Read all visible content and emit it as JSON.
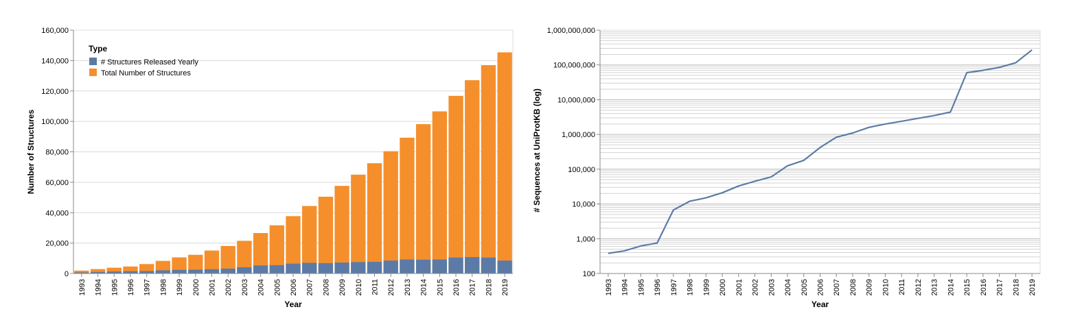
{
  "chart_data": [
    {
      "type": "bar",
      "stacked": true,
      "xlabel": "Year",
      "ylabel": "Number of Structures",
      "ylim": [
        0,
        160000
      ],
      "yticks": [
        "0",
        "20,000",
        "40,000",
        "60,000",
        "80,000",
        "100,000",
        "120,000",
        "140,000",
        "160,000"
      ],
      "grid": true,
      "legend": {
        "title": "Type",
        "placement": "top-left"
      },
      "categories": [
        "1993",
        "1994",
        "1995",
        "1996",
        "1997",
        "1998",
        "1999",
        "2000",
        "2001",
        "2002",
        "2003",
        "2004",
        "2005",
        "2006",
        "2007",
        "2008",
        "2009",
        "2010",
        "2011",
        "2012",
        "2013",
        "2014",
        "2015",
        "2016",
        "2017",
        "2018",
        "2019"
      ],
      "series": [
        {
          "name": "# Structures Released Yearly",
          "color": "#5b7ba6",
          "values": [
            700,
            1000,
            1300,
            1500,
            1600,
            2100,
            2400,
            2500,
            2800,
            3200,
            4100,
            5300,
            5500,
            6500,
            7000,
            6800,
            7200,
            7500,
            7700,
            8500,
            9200,
            9100,
            9200,
            10500,
            10800,
            10500,
            8500
          ]
        },
        {
          "name": "Total Number of Structures",
          "color": "#f58f2c",
          "values": [
            1900,
            2900,
            3800,
            4600,
            6200,
            8300,
            10600,
            12300,
            15100,
            18100,
            21500,
            26600,
            31700,
            37700,
            44400,
            50500,
            57600,
            65000,
            72500,
            80400,
            89300,
            98200,
            106600,
            116800,
            127100,
            137000,
            145400
          ]
        }
      ]
    },
    {
      "type": "line",
      "scale": "log",
      "xlabel": "Year",
      "ylabel": "# Sequences at UniProtKB (log)",
      "ylim": [
        100,
        1000000000
      ],
      "yticks": [
        "100",
        "1,000",
        "10,000",
        "100,000",
        "1,000,000",
        "10,000,000",
        "100,000,000",
        "1,000,000,000"
      ],
      "grid": true,
      "x": [
        "1993",
        "1994",
        "1995",
        "1996",
        "1997",
        "1998",
        "1999",
        "2000",
        "2001",
        "2002",
        "2003",
        "2004",
        "2005",
        "2006",
        "2007",
        "2008",
        "2009",
        "2010",
        "2011",
        "2012",
        "2013",
        "2014",
        "2015",
        "2016",
        "2017",
        "2018",
        "2019"
      ],
      "series": [
        {
          "color": "#5b7ba6",
          "values": [
            380,
            450,
            620,
            750,
            6700,
            12000,
            15000,
            21000,
            33000,
            45000,
            60000,
            125000,
            180000,
            420000,
            830000,
            1100000,
            1600000,
            2000000,
            2400000,
            2900000,
            3500000,
            4400000,
            60000000,
            70000000,
            85000000,
            115000000,
            270000000
          ]
        }
      ]
    }
  ]
}
